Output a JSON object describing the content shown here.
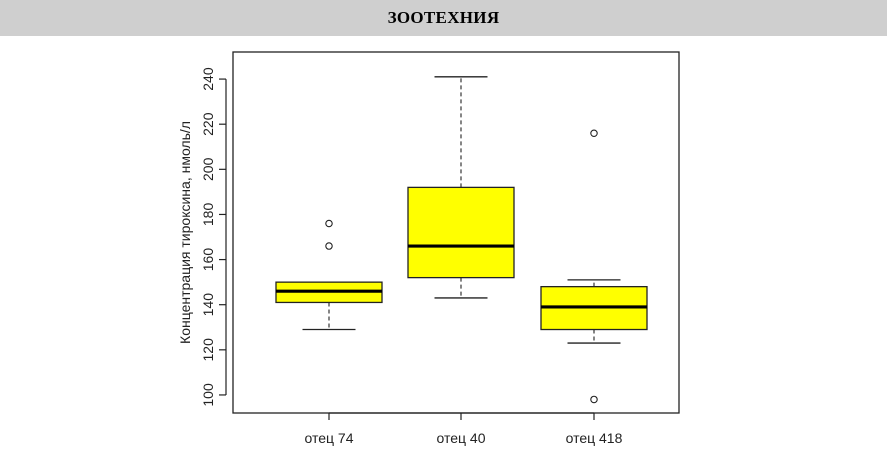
{
  "header": {
    "title": "ЗООТЕХНИЯ"
  },
  "colors": {
    "header_bg": "#cfcfcf",
    "box_fill": "#ffff00",
    "stroke": "#222222"
  },
  "chart_data": {
    "type": "box",
    "title": "",
    "xlabel": "",
    "ylabel": "Концентрация тироксина, нмоль/л",
    "ylim": [
      92,
      252
    ],
    "yticks": [
      100,
      120,
      140,
      160,
      180,
      200,
      220,
      240
    ],
    "grid": false,
    "categories": [
      "отец 74",
      "отец 40",
      "отец 418"
    ],
    "boxes": [
      {
        "category": "отец 74",
        "whisker_low": 129,
        "q1": 141,
        "median": 146,
        "q3": 150,
        "whisker_high": 150,
        "outliers": [
          166,
          176
        ]
      },
      {
        "category": "отец 40",
        "whisker_low": 143,
        "q1": 152,
        "median": 166,
        "q3": 192,
        "whisker_high": 241,
        "outliers": []
      },
      {
        "category": "отец 418",
        "whisker_low": 123,
        "q1": 129,
        "median": 139,
        "q3": 148,
        "whisker_high": 151,
        "outliers": [
          98,
          216
        ]
      }
    ]
  }
}
